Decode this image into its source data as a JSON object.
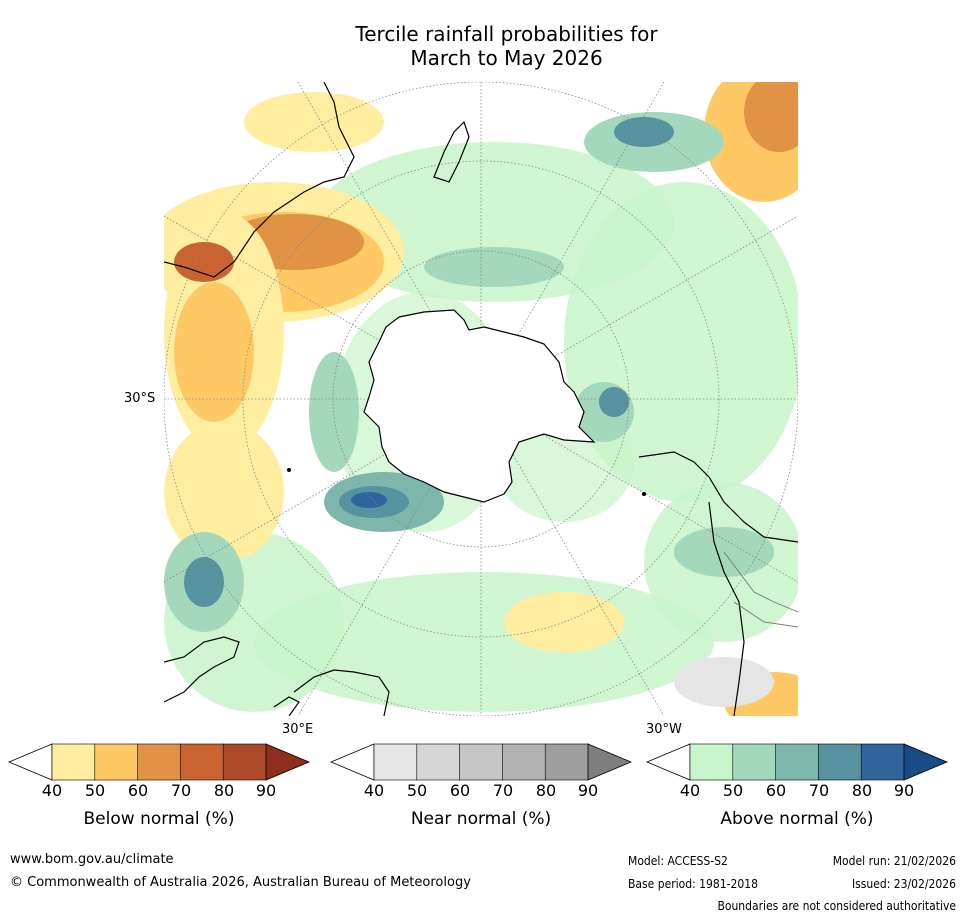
{
  "title": {
    "line1": "Tercile rainfall probabilities for",
    "line2": "March to May 2026"
  },
  "map": {
    "projection": "south-polar-stereographic",
    "lat_label": "30°S",
    "lon_labels": [
      "30°E",
      "30°W"
    ],
    "land_color": "#000000",
    "graticule_color": "#888888"
  },
  "colorbars": [
    {
      "id": "below",
      "title": "Below normal (%)",
      "ticks": [
        "40",
        "50",
        "60",
        "70",
        "80",
        "90"
      ],
      "colors": [
        "#ffffff",
        "#ffeda0",
        "#fec965",
        "#e09245",
        "#c96431",
        "#ad4a29",
        "#8e2e1d"
      ]
    },
    {
      "id": "near",
      "title": "Near normal (%)",
      "ticks": [
        "40",
        "50",
        "60",
        "70",
        "80",
        "90"
      ],
      "colors": [
        "#ffffff",
        "#e5e5e5",
        "#d6d6d6",
        "#c6c6c6",
        "#b3b3b3",
        "#9e9e9e",
        "#7e7e7e"
      ]
    },
    {
      "id": "above",
      "title": "Above normal (%)",
      "ticks": [
        "40",
        "50",
        "60",
        "70",
        "80",
        "90"
      ],
      "colors": [
        "#ffffff",
        "#c8f5c9",
        "#a3d8bc",
        "#7db7ab",
        "#5792a0",
        "#2f659b",
        "#194b85"
      ]
    }
  ],
  "footer": {
    "website": "www.bom.gov.au/climate",
    "copyright": "© Commonwealth of Australia 2026, Australian Bureau of Meteorology",
    "model": "Model: ACCESS-S2",
    "base_period": "Base period: 1981-2018",
    "model_run": "Model run: 21/02/2026",
    "issued": "Issued: 23/02/2026",
    "disclaimer": "Boundaries are not considered authoritative"
  }
}
